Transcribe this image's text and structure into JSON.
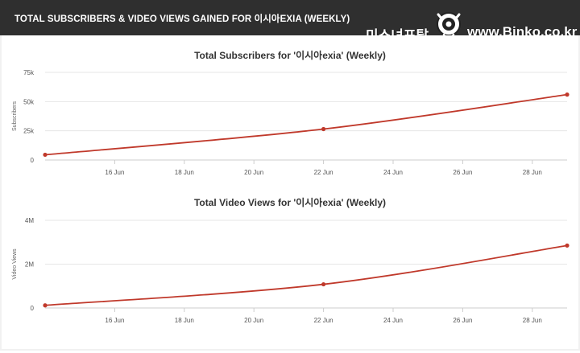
{
  "header": {
    "title": "TOTAL SUBSCRIBERS & VIDEO VIEWS GAINED FOR 이시아EXIA (WEEKLY)"
  },
  "watermark": {
    "left_text": "미소녀포탈",
    "right_text": "www.Binko.co.kr"
  },
  "colors": {
    "header_bg": "#2f2f2f",
    "line": "#c0392b",
    "grid": "#e6e6e6"
  },
  "chart_data": [
    {
      "type": "line",
      "title": "Total Subscribers for '이시아exia' (Weekly)",
      "xlabel": "",
      "ylabel": "Subscribers",
      "x_tick_labels": [
        "16 Jun",
        "18 Jun",
        "20 Jun",
        "22 Jun",
        "24 Jun",
        "26 Jun",
        "28 Jun"
      ],
      "y_tick_labels": [
        "0",
        "25k",
        "50k",
        "75k"
      ],
      "ylim": [
        0,
        75000
      ],
      "xlim": [
        "2020-06-14",
        "2020-06-29"
      ],
      "grid": true,
      "series": [
        {
          "x": [
            "2020-06-14",
            "2020-06-22",
            "2020-06-29"
          ],
          "y": [
            4500,
            26500,
            56000
          ],
          "markers": true
        }
      ]
    },
    {
      "type": "line",
      "title": "Total Video Views for '이시아exia' (Weekly)",
      "xlabel": "",
      "ylabel": "Video Views",
      "x_tick_labels": [
        "16 Jun",
        "18 Jun",
        "20 Jun",
        "22 Jun",
        "24 Jun",
        "26 Jun",
        "28 Jun"
      ],
      "y_tick_labels": [
        "0",
        "2M",
        "4M"
      ],
      "ylim": [
        0,
        4000000
      ],
      "xlim": [
        "2020-06-14",
        "2020-06-29"
      ],
      "grid": true,
      "series": [
        {
          "x": [
            "2020-06-14",
            "2020-06-22",
            "2020-06-29"
          ],
          "y": [
            120000,
            1080000,
            2850000
          ],
          "markers": true
        }
      ]
    }
  ]
}
